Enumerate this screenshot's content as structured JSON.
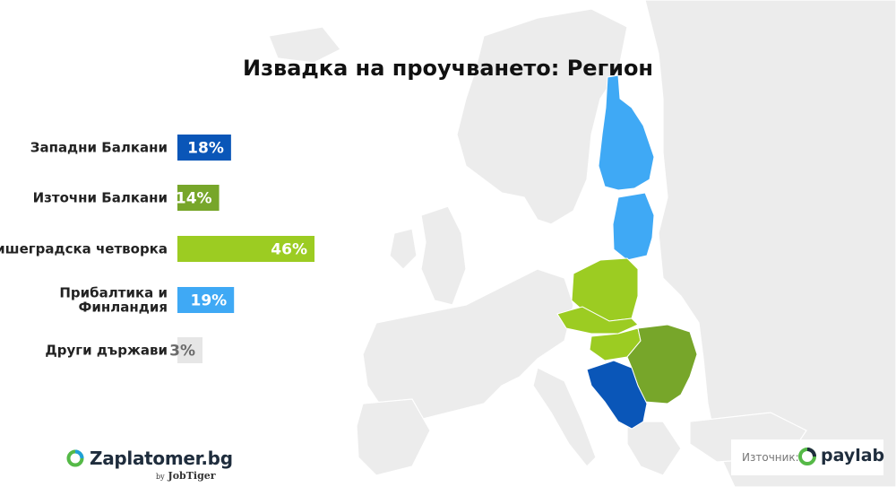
{
  "title": "Извадка на проучването: Регион",
  "chart_data": {
    "type": "bar",
    "orientation": "horizontal",
    "categories": [
      "Западни Балкани",
      "Източни Балкани",
      "Вишеградска четворка",
      "Прибалтика и Финландия",
      "Други държави"
    ],
    "values": [
      18,
      14,
      46,
      19,
      3
    ],
    "value_labels": [
      "18%",
      "14%",
      "46%",
      "19%",
      "3%"
    ],
    "unit": "%",
    "colors": [
      "#0a56b8",
      "#77a62a",
      "#9ccc22",
      "#3fa9f5",
      "#e6e6e6"
    ],
    "label_colors": [
      "#ffffff",
      "#ffffff",
      "#ffffff",
      "#ffffff",
      "#6b6b6b"
    ],
    "xlim": [
      0,
      46
    ],
    "grid": false
  },
  "logos": {
    "left_brand": "Zaplatomer.bg",
    "left_byline_prefix": "by",
    "left_byline": "JobTiger",
    "source_label": "Източник:",
    "right_brand": "paylab"
  },
  "colors": {
    "map_land": "#ececec",
    "western_balkans": "#0a56b8",
    "eastern_balkans": "#77a62a",
    "visegrad": "#9ccc22",
    "baltics_finland": "#3fa9f5"
  }
}
